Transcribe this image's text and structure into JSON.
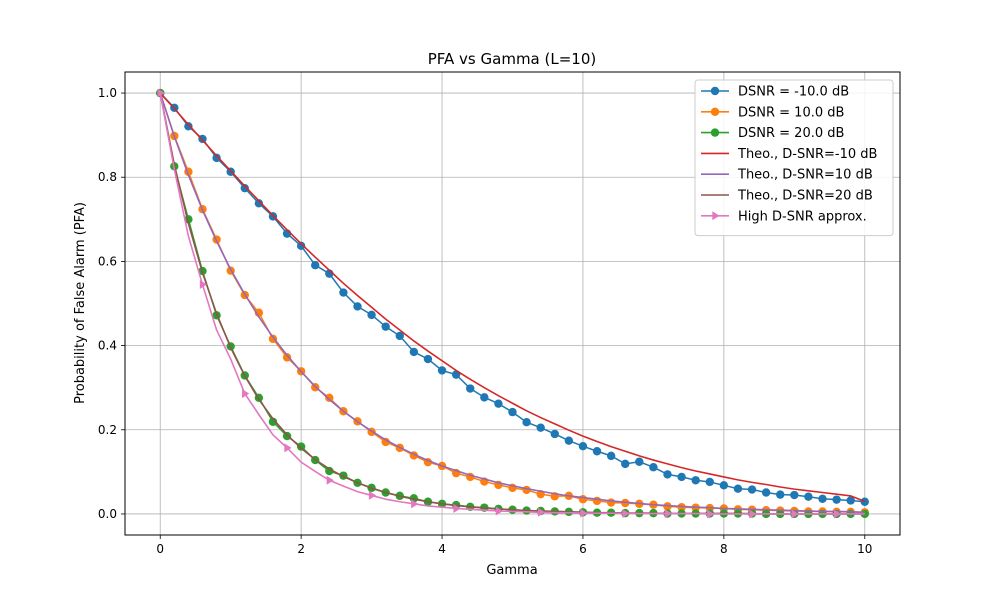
{
  "chart_data": {
    "type": "line",
    "title": "PFA vs Gamma (L=10)",
    "xlabel": "Gamma",
    "ylabel": "Probability of False Alarm (PFA)",
    "xlim": [
      -0.5,
      10.5
    ],
    "ylim": [
      -0.05,
      1.05
    ],
    "xticks": [
      0,
      2,
      4,
      6,
      8,
      10
    ],
    "yticks": [
      0.0,
      0.2,
      0.4,
      0.6,
      0.8,
      1.0
    ],
    "xtick_labels": [
      "0",
      "2",
      "4",
      "6",
      "8",
      "10"
    ],
    "ytick_labels": [
      "0.0",
      "0.2",
      "0.4",
      "0.6",
      "0.8",
      "1.0"
    ],
    "grid": true,
    "legend_position": "top-right",
    "x": [
      0.0,
      0.2,
      0.4,
      0.6,
      0.8,
      1.0,
      1.2,
      1.4,
      1.6,
      1.8,
      2.0,
      2.2,
      2.4,
      2.6,
      2.8,
      3.0,
      3.2,
      3.4,
      3.6,
      3.8,
      4.0,
      4.2,
      4.4,
      4.6,
      4.8,
      5.0,
      5.2,
      5.4,
      5.6,
      5.8,
      6.0,
      6.2,
      6.4,
      6.6,
      6.8,
      7.0,
      7.2,
      7.4,
      7.6,
      7.8,
      8.0,
      8.2,
      8.4,
      8.6,
      8.8,
      9.0,
      9.2,
      9.4,
      9.6,
      9.8,
      10.0
    ],
    "series": [
      {
        "name": "DSNR = -10.0 dB",
        "style": "marker",
        "marker": "circle",
        "color": "#1f77b4",
        "values": [
          1.0,
          0.965,
          0.921,
          0.891,
          0.846,
          0.813,
          0.774,
          0.738,
          0.707,
          0.666,
          0.637,
          0.591,
          0.571,
          0.526,
          0.493,
          0.473,
          0.445,
          0.423,
          0.385,
          0.368,
          0.341,
          0.331,
          0.298,
          0.277,
          0.262,
          0.242,
          0.218,
          0.205,
          0.19,
          0.174,
          0.161,
          0.149,
          0.138,
          0.119,
          0.124,
          0.111,
          0.094,
          0.088,
          0.08,
          0.076,
          0.068,
          0.06,
          0.058,
          0.051,
          0.046,
          0.045,
          0.041,
          0.036,
          0.034,
          0.032,
          0.029
        ]
      },
      {
        "name": "DSNR = 10.0 dB",
        "style": "marker",
        "marker": "circle",
        "color": "#ff7f0e",
        "values": [
          1.0,
          0.898,
          0.813,
          0.724,
          0.652,
          0.578,
          0.52,
          0.478,
          0.416,
          0.372,
          0.339,
          0.301,
          0.276,
          0.244,
          0.22,
          0.195,
          0.171,
          0.157,
          0.139,
          0.123,
          0.114,
          0.097,
          0.088,
          0.077,
          0.069,
          0.062,
          0.057,
          0.047,
          0.042,
          0.043,
          0.035,
          0.031,
          0.027,
          0.026,
          0.024,
          0.022,
          0.018,
          0.016,
          0.015,
          0.014,
          0.013,
          0.011,
          0.01,
          0.009,
          0.008,
          0.007,
          0.006,
          0.006,
          0.005,
          0.005,
          0.004
        ]
      },
      {
        "name": "DSNR = 20.0 dB",
        "style": "marker",
        "marker": "circle",
        "color": "#2ca02c",
        "values": [
          1.0,
          0.826,
          0.7,
          0.577,
          0.472,
          0.398,
          0.329,
          0.276,
          0.219,
          0.185,
          0.16,
          0.128,
          0.102,
          0.091,
          0.074,
          0.062,
          0.051,
          0.043,
          0.037,
          0.029,
          0.024,
          0.021,
          0.017,
          0.015,
          0.012,
          0.01,
          0.008,
          0.007,
          0.006,
          0.005,
          0.004,
          0.003,
          0.003,
          0.002,
          0.002,
          0.002,
          0.001,
          0.001,
          0.001,
          0.001,
          0.001,
          0.001,
          0.001,
          0.0,
          0.0,
          0.0,
          0.0,
          0.0,
          0.0,
          0.0,
          0.0
        ]
      },
      {
        "name": "Theo., D-SNR=-10 dB",
        "style": "line",
        "color": "#d62728",
        "values": [
          1.0,
          0.963,
          0.925,
          0.888,
          0.851,
          0.815,
          0.779,
          0.744,
          0.709,
          0.675,
          0.642,
          0.61,
          0.579,
          0.548,
          0.519,
          0.491,
          0.463,
          0.437,
          0.411,
          0.387,
          0.364,
          0.341,
          0.32,
          0.3,
          0.281,
          0.263,
          0.245,
          0.229,
          0.214,
          0.199,
          0.185,
          0.172,
          0.16,
          0.149,
          0.138,
          0.128,
          0.119,
          0.11,
          0.102,
          0.095,
          0.088,
          0.081,
          0.075,
          0.07,
          0.064,
          0.059,
          0.055,
          0.051,
          0.047,
          0.043,
          0.03
        ]
      },
      {
        "name": "Theo., D-SNR=10 dB",
        "style": "line",
        "color": "#9467bd",
        "values": [
          1.0,
          0.897,
          0.805,
          0.722,
          0.648,
          0.581,
          0.522,
          0.468,
          0.42,
          0.377,
          0.338,
          0.303,
          0.272,
          0.244,
          0.219,
          0.197,
          0.176,
          0.158,
          0.142,
          0.127,
          0.114,
          0.103,
          0.092,
          0.083,
          0.074,
          0.067,
          0.06,
          0.054,
          0.048,
          0.043,
          0.039,
          0.035,
          0.031,
          0.028,
          0.025,
          0.022,
          0.02,
          0.018,
          0.016,
          0.015,
          0.013,
          0.012,
          0.011,
          0.01,
          0.009,
          0.008,
          0.007,
          0.006,
          0.006,
          0.005,
          0.004
        ]
      },
      {
        "name": "Theo., D-SNR=20 dB",
        "style": "line",
        "color": "#8c564b",
        "values": [
          1.0,
          0.83,
          0.69,
          0.573,
          0.476,
          0.395,
          0.328,
          0.272,
          0.226,
          0.188,
          0.156,
          0.129,
          0.107,
          0.089,
          0.074,
          0.061,
          0.051,
          0.042,
          0.035,
          0.029,
          0.024,
          0.02,
          0.017,
          0.014,
          0.012,
          0.01,
          0.008,
          0.007,
          0.006,
          0.005,
          0.004,
          0.003,
          0.003,
          0.002,
          0.002,
          0.002,
          0.001,
          0.001,
          0.001,
          0.001,
          0.001,
          0.001,
          0.0,
          0.0,
          0.0,
          0.0,
          0.0,
          0.0,
          0.0,
          0.0,
          0.0
        ]
      },
      {
        "name": "High D-SNR approx.",
        "style": "line+marker",
        "marker": "triangle-right",
        "color": "#e377c2",
        "values": [
          1.0,
          0.819,
          0.66,
          0.545,
          0.437,
          0.368,
          0.286,
          0.236,
          0.188,
          0.157,
          0.123,
          0.101,
          0.08,
          0.066,
          0.053,
          0.044,
          0.035,
          0.029,
          0.024,
          0.019,
          0.016,
          0.013,
          0.011,
          0.009,
          0.007,
          0.006,
          0.005,
          0.004,
          0.003,
          0.003,
          0.002,
          0.002,
          0.002,
          0.001,
          0.001,
          0.001,
          0.001,
          0.001,
          0.001,
          0.0,
          0.0,
          0.0,
          0.0,
          0.0,
          0.0,
          0.0,
          0.0,
          0.0,
          0.0,
          0.0,
          0.0
        ],
        "marker_every": 3
      }
    ]
  }
}
